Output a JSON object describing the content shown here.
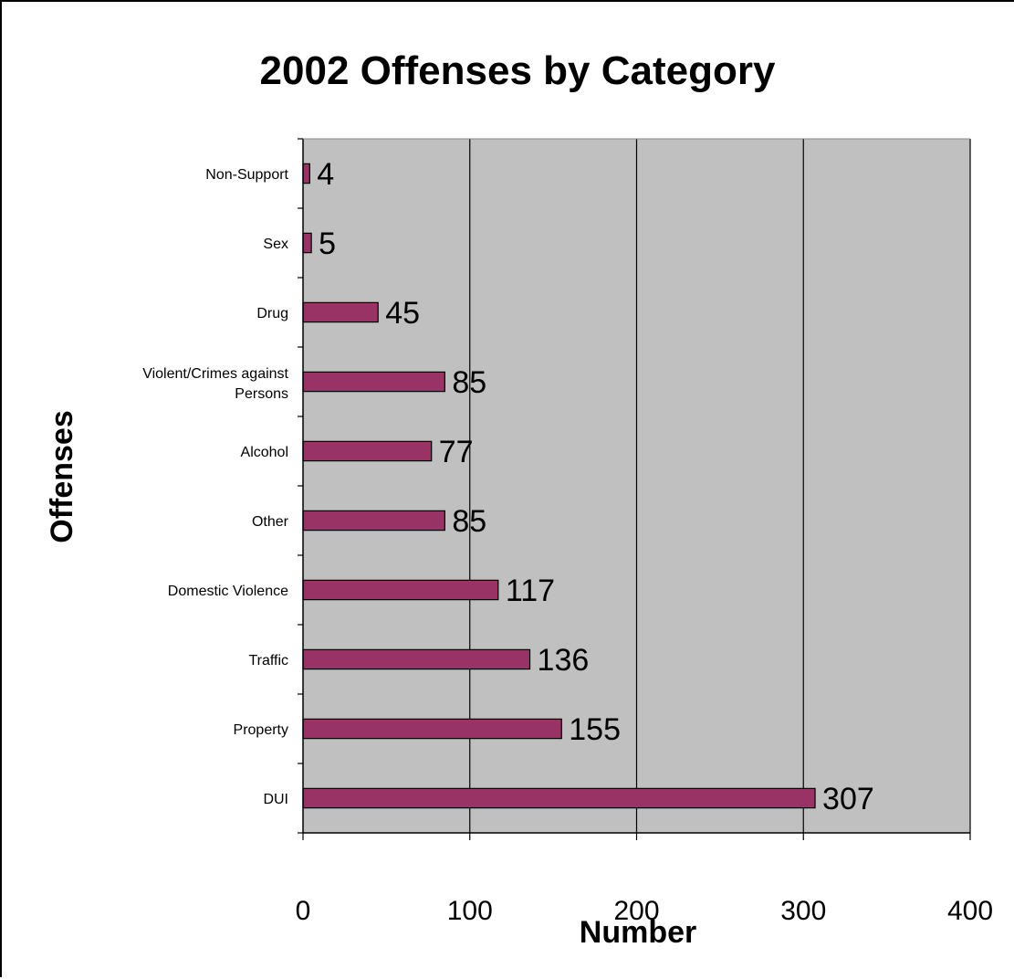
{
  "chart_data": {
    "type": "bar",
    "orientation": "horizontal",
    "title": "2002 Offenses by Category",
    "xlabel": "Number",
    "ylabel": "Offenses",
    "categories": [
      "Non-Support",
      "Sex",
      "Drug",
      "Violent/Crimes against Persons",
      "Alcohol",
      "Other",
      "Domestic Violence",
      "Traffic",
      "Property",
      "DUI"
    ],
    "values": [
      4,
      5,
      45,
      85,
      77,
      85,
      117,
      136,
      155,
      307
    ],
    "xlim": [
      0,
      400
    ],
    "xticks": [
      0,
      100,
      200,
      300,
      400
    ],
    "grid": true,
    "legend": "none",
    "colors": {
      "bar": "#993366",
      "plot_background": "#c0c0c0",
      "gridline": "#000000"
    }
  }
}
